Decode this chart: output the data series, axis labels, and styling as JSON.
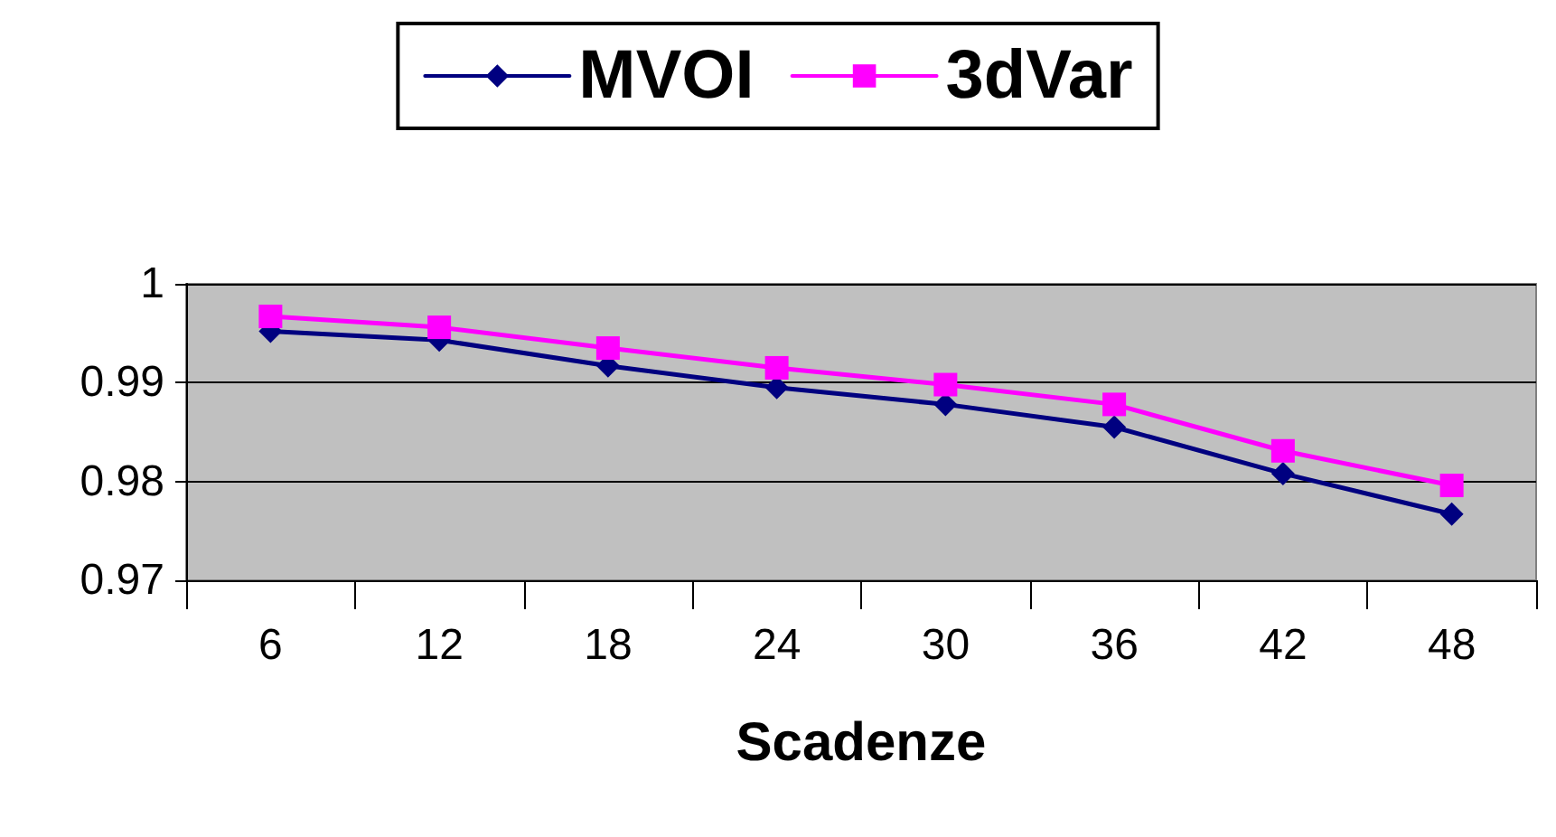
{
  "chart_data": {
    "type": "line",
    "xlabel": "Scadenze",
    "categories": [
      "6",
      "12",
      "18",
      "24",
      "30",
      "36",
      "42",
      "48"
    ],
    "series": [
      {
        "name": "MVOI",
        "color": "#000080",
        "marker": "diamond",
        "values": [
          0.9952,
          0.9943,
          0.9917,
          0.9895,
          0.9878,
          0.9855,
          0.9808,
          0.9767
        ]
      },
      {
        "name": "3dVar",
        "color": "#ff00ff",
        "marker": "square",
        "values": [
          0.9967,
          0.9956,
          0.9935,
          0.9915,
          0.9898,
          0.9878,
          0.9831,
          0.9796
        ]
      }
    ],
    "ylim": [
      0.97,
      1
    ],
    "yticks": [
      0.97,
      0.98,
      0.99,
      1
    ],
    "grid": "y",
    "legend": "top",
    "line_style": "solid"
  }
}
